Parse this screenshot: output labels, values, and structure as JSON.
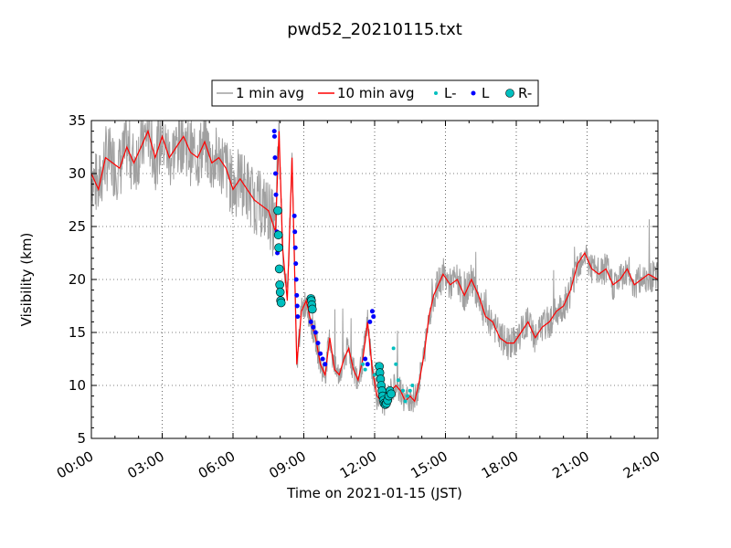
{
  "chart_data": {
    "type": "line",
    "title": "pwd52_20210115.txt",
    "xlabel": "Time on 2021-01-15 (JST)",
    "ylabel": "Visibility (km)",
    "xlim": [
      0,
      24
    ],
    "ylim": [
      5,
      35
    ],
    "x_ticks": [
      "00:00",
      "03:00",
      "06:00",
      "09:00",
      "12:00",
      "15:00",
      "18:00",
      "21:00",
      "24:00"
    ],
    "y_ticks": [
      5,
      10,
      15,
      20,
      25,
      30,
      35
    ],
    "grid": true,
    "legend_placement": "top-center",
    "legend": [
      {
        "label": "1 min avg",
        "style": "line",
        "color": "#a0a0a0"
      },
      {
        "label": "10 min avg",
        "style": "line",
        "color": "#ff0000"
      },
      {
        "label": "L-",
        "style": "small-dot",
        "color": "#00bfbf"
      },
      {
        "label": "L",
        "style": "dot",
        "color": "#0000ff"
      },
      {
        "label": "R-",
        "style": "circle",
        "color": "#00bfbf"
      }
    ],
    "series": [
      {
        "name": "10 min avg",
        "color": "#ff0000",
        "x": [
          0,
          0.3,
          0.6,
          0.9,
          1.2,
          1.5,
          1.8,
          2.1,
          2.4,
          2.7,
          3.0,
          3.3,
          3.6,
          3.9,
          4.2,
          4.5,
          4.8,
          5.1,
          5.4,
          5.7,
          6.0,
          6.3,
          6.6,
          6.9,
          7.2,
          7.5,
          7.8,
          7.95,
          8.1,
          8.3,
          8.5,
          8.7,
          8.9,
          9.1,
          9.3,
          9.5,
          9.7,
          9.9,
          10.1,
          10.3,
          10.5,
          10.7,
          10.9,
          11.1,
          11.3,
          11.5,
          11.7,
          11.9,
          12.1,
          12.3,
          12.5,
          12.7,
          12.9,
          13.1,
          13.3,
          13.5,
          13.7,
          13.9,
          14.1,
          14.3,
          14.5,
          14.7,
          14.9,
          15.2,
          15.5,
          15.8,
          16.1,
          16.4,
          16.7,
          17.0,
          17.3,
          17.6,
          17.9,
          18.2,
          18.5,
          18.8,
          19.1,
          19.4,
          19.7,
          20.0,
          20.3,
          20.6,
          20.9,
          21.2,
          21.5,
          21.8,
          22.1,
          22.4,
          22.7,
          23.0,
          23.3,
          23.6,
          24.0
        ],
        "y": [
          30.0,
          28.5,
          31.5,
          31.0,
          30.5,
          32.5,
          31.0,
          32.5,
          34.0,
          31.5,
          33.5,
          31.5,
          32.5,
          33.5,
          32.0,
          31.5,
          33.0,
          31.0,
          31.5,
          30.5,
          28.5,
          29.5,
          28.5,
          27.5,
          27.0,
          26.5,
          24.5,
          34.0,
          23.0,
          18.0,
          31.5,
          12.0,
          17.0,
          18.0,
          16.0,
          14.5,
          12.0,
          11.0,
          14.5,
          11.5,
          11.0,
          12.5,
          13.5,
          11.5,
          10.5,
          12.5,
          16.0,
          11.5,
          9.0,
          8.5,
          8.5,
          9.5,
          10.0,
          9.5,
          8.5,
          9.0,
          8.5,
          10.5,
          13.0,
          16.5,
          18.5,
          19.5,
          20.5,
          19.5,
          20.0,
          18.5,
          20.0,
          18.5,
          16.5,
          16.0,
          14.5,
          14.0,
          14.0,
          15.0,
          16.0,
          14.5,
          15.5,
          16.0,
          17.0,
          17.5,
          19.0,
          21.5,
          22.5,
          21.0,
          20.5,
          21.0,
          19.5,
          20.0,
          21.0,
          19.5,
          20.0,
          20.5,
          20.0
        ]
      },
      {
        "name": "L",
        "color": "#0000ff",
        "x": [
          7.75,
          7.76,
          7.78,
          7.8,
          7.82,
          7.84,
          7.86,
          7.88,
          8.6,
          8.62,
          8.64,
          8.66,
          8.68,
          8.7,
          8.72,
          8.74,
          9.3,
          9.4,
          9.5,
          9.6,
          9.7,
          9.8,
          9.9,
          11.6,
          11.7,
          11.8,
          11.9,
          11.95
        ],
        "y": [
          34.0,
          33.5,
          31.5,
          30.0,
          28.0,
          26.5,
          24.5,
          22.5,
          26.0,
          24.5,
          23.0,
          21.5,
          20.0,
          18.5,
          17.5,
          16.5,
          16.0,
          15.5,
          15.0,
          14.0,
          13.0,
          12.5,
          12.0,
          12.5,
          12.0,
          16.0,
          17.0,
          16.5
        ]
      },
      {
        "name": "R-",
        "color": "#00bfbf",
        "x": [
          7.9,
          7.92,
          7.94,
          7.96,
          7.98,
          8.0,
          8.02,
          8.04,
          9.3,
          9.32,
          9.34,
          9.36,
          12.2,
          12.22,
          12.25,
          12.28,
          12.31,
          12.34,
          12.37,
          12.4,
          12.45,
          12.5,
          12.55,
          12.6,
          12.65,
          12.7
        ],
        "y": [
          26.5,
          24.2,
          23.0,
          21.0,
          19.5,
          18.8,
          18.0,
          17.8,
          18.2,
          18.0,
          17.6,
          17.2,
          11.8,
          11.2,
          10.6,
          10.0,
          9.5,
          9.0,
          8.6,
          8.3,
          8.2,
          8.3,
          8.6,
          9.0,
          9.5,
          9.2
        ]
      },
      {
        "name": "L-",
        "color": "#00bfbf",
        "x": [
          11.5,
          11.6,
          12.0,
          12.1,
          12.8,
          12.9,
          13.0,
          13.2,
          13.3,
          13.4,
          13.5,
          13.6
        ],
        "y": [
          12.0,
          11.5,
          11.0,
          12.0,
          13.5,
          12.0,
          10.5,
          9.5,
          8.5,
          9.0,
          9.5,
          10.0
        ]
      }
    ]
  }
}
